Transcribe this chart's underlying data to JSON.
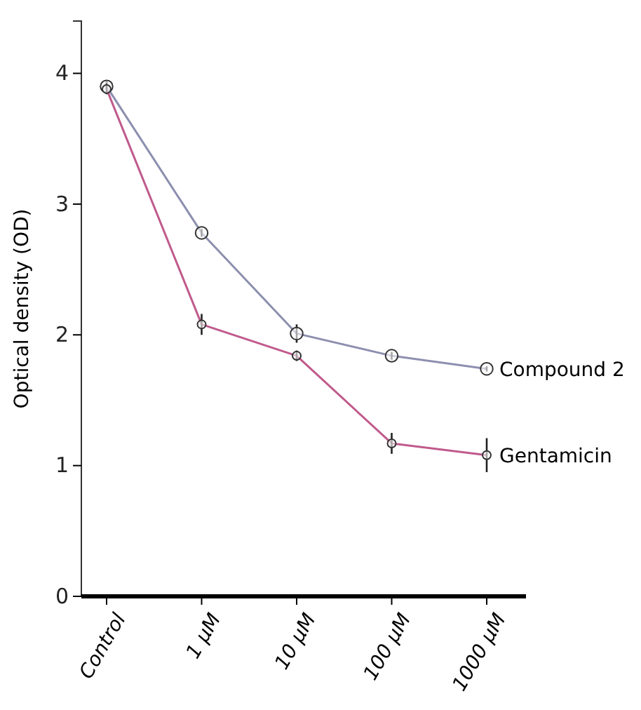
{
  "chart_data": {
    "type": "line",
    "ylabel": "Optical density (OD)",
    "categories": [
      "Control",
      "1 μM",
      "10 μM",
      "100 μM",
      "1000 μM"
    ],
    "series": [
      {
        "name": "Compound 2",
        "color": "#8c8fae",
        "values": [
          3.9,
          2.78,
          2.01,
          1.84,
          1.74
        ],
        "errors": [
          0.04,
          0.03,
          0.07,
          0.03,
          0.02
        ]
      },
      {
        "name": "Gentamicin",
        "color": "#c05a8c",
        "values": [
          3.88,
          2.08,
          1.84,
          1.17,
          1.08
        ],
        "errors": [
          0.04,
          0.08,
          0.04,
          0.08,
          0.13
        ]
      }
    ],
    "ylim": [
      0,
      4.4
    ],
    "yticks": [
      0,
      1,
      2,
      3,
      4
    ],
    "legend": false,
    "marker": "circle",
    "line_style": "solid",
    "grid": false
  }
}
